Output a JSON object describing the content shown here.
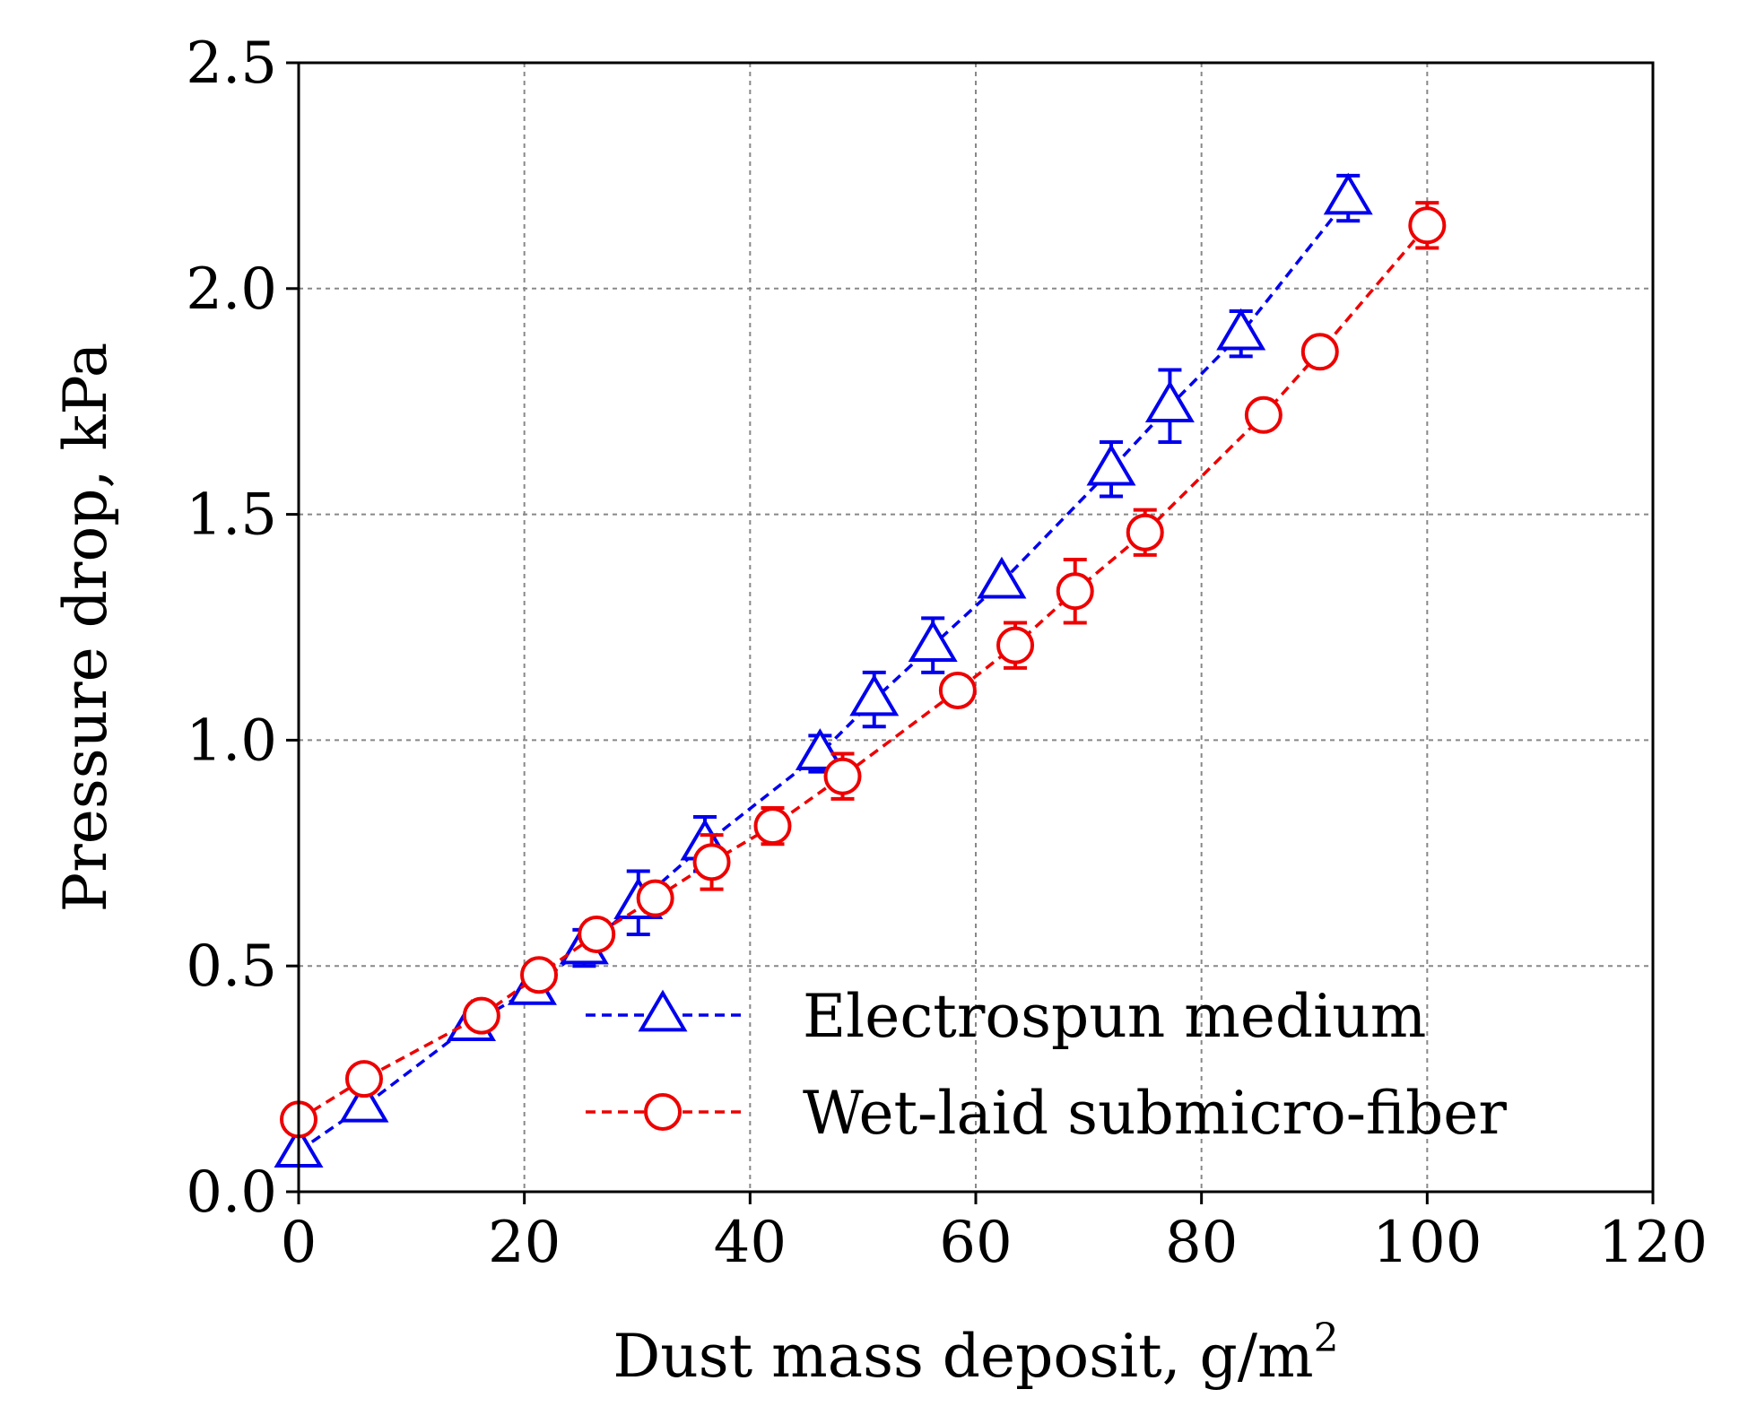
{
  "chart_data": {
    "type": "line",
    "title": "",
    "xlabel": "Dust mass deposit, g/m",
    "xlabel_superscript": "2",
    "ylabel": "Pressure drop, kPa",
    "xlim": [
      0,
      120
    ],
    "ylim": [
      0,
      2.5
    ],
    "xticks": [
      0,
      20,
      40,
      60,
      80,
      100,
      120
    ],
    "xtick_labels": [
      "0",
      "20",
      "40",
      "60",
      "80",
      "100",
      "120"
    ],
    "yticks": [
      0.0,
      0.5,
      1.0,
      1.5,
      2.0,
      2.5
    ],
    "ytick_labels": [
      "0.0",
      "0.5",
      "1.0",
      "1.5",
      "2.0",
      "2.5"
    ],
    "grid": true,
    "legend_position": "bottom-right",
    "series": [
      {
        "name": "Electrospun medium",
        "color": "#0000ee",
        "marker": "triangle",
        "linestyle": "dashed",
        "x": [
          0,
          5.8,
          15.3,
          20.7,
          25.3,
          30.1,
          36.0,
          46.2,
          51.0,
          56.2,
          62.3,
          72.0,
          77.2,
          83.5,
          93.0
        ],
        "y": [
          0.09,
          0.19,
          0.37,
          0.45,
          0.54,
          0.64,
          0.77,
          0.97,
          1.09,
          1.21,
          1.35,
          1.6,
          1.74,
          1.9,
          2.2
        ],
        "yerr": [
          0.0,
          0.0,
          0.0,
          0.0,
          0.04,
          0.07,
          0.06,
          0.04,
          0.06,
          0.06,
          0.0,
          0.06,
          0.08,
          0.05,
          0.05
        ]
      },
      {
        "name": "Wet-laid submicro-fiber",
        "color": "#ee0000",
        "marker": "circle",
        "linestyle": "dashed",
        "x": [
          0,
          5.8,
          16.2,
          21.3,
          26.4,
          31.6,
          36.6,
          42.0,
          48.2,
          58.4,
          63.5,
          68.8,
          75.0,
          85.5,
          90.5,
          100.0
        ],
        "y": [
          0.16,
          0.25,
          0.39,
          0.48,
          0.57,
          0.65,
          0.73,
          0.81,
          0.92,
          1.11,
          1.21,
          1.33,
          1.46,
          1.72,
          1.86,
          2.14
        ],
        "yerr": [
          0.0,
          0.0,
          0.0,
          0.0,
          0.03,
          0.03,
          0.06,
          0.04,
          0.05,
          0.0,
          0.05,
          0.07,
          0.05,
          0.0,
          0.0,
          0.05
        ]
      }
    ]
  }
}
